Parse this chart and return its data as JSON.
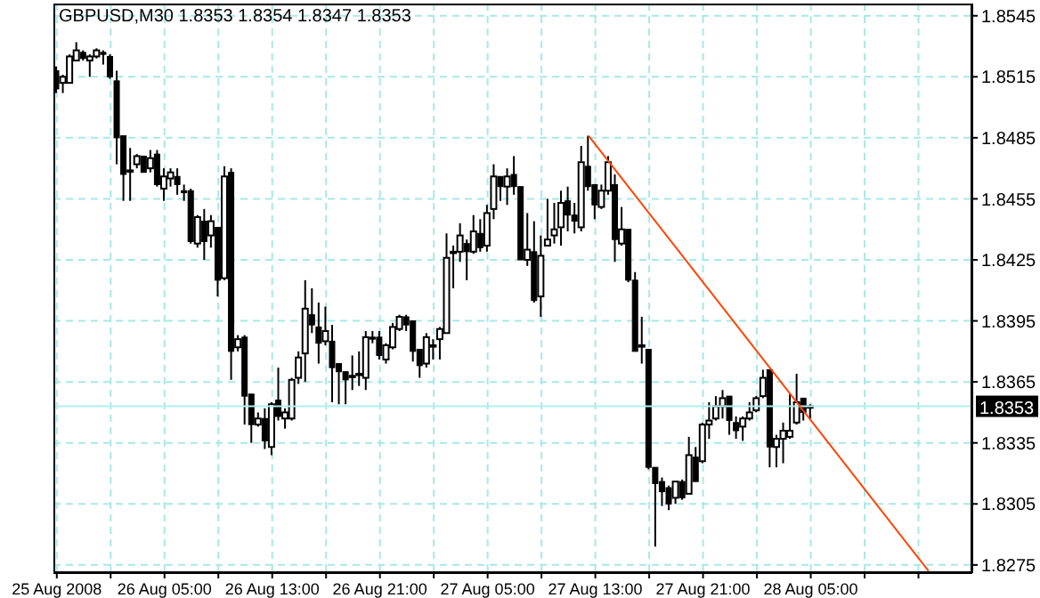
{
  "chart_data": {
    "type": "candlestick",
    "title": "GBPUSD,M30 1.8353 1.8354 1.8347 1.8353",
    "color": "#000000",
    "x": [
      "2008-08-25T21:00",
      "2008-08-25T21:30",
      "2008-08-25T22:00",
      "2008-08-25T22:30",
      "2008-08-25T23:00",
      "2008-08-25T23:30",
      "2008-08-26T00:00",
      "2008-08-26T00:30",
      "2008-08-26T01:00",
      "2008-08-26T01:30",
      "2008-08-26T02:00",
      "2008-08-26T02:30",
      "2008-08-26T03:00",
      "2008-08-26T03:30",
      "2008-08-26T04:00",
      "2008-08-26T04:30",
      "2008-08-26T05:00",
      "2008-08-26T05:30",
      "2008-08-26T06:00",
      "2008-08-26T06:30",
      "2008-08-26T07:00",
      "2008-08-26T07:30",
      "2008-08-26T08:00",
      "2008-08-26T08:30",
      "2008-08-26T09:00",
      "2008-08-26T09:30",
      "2008-08-26T10:00",
      "2008-08-26T10:30",
      "2008-08-26T11:00",
      "2008-08-26T11:30",
      "2008-08-26T12:00",
      "2008-08-26T12:30",
      "2008-08-26T13:00",
      "2008-08-26T13:30",
      "2008-08-26T14:00",
      "2008-08-26T14:30",
      "2008-08-26T15:00",
      "2008-08-26T15:30",
      "2008-08-26T16:00",
      "2008-08-26T16:30",
      "2008-08-26T17:00",
      "2008-08-26T17:30",
      "2008-08-26T18:00",
      "2008-08-26T18:30",
      "2008-08-26T19:00",
      "2008-08-26T19:30",
      "2008-08-26T20:00",
      "2008-08-26T20:30",
      "2008-08-26T21:00",
      "2008-08-26T21:30",
      "2008-08-26T22:00",
      "2008-08-26T22:30",
      "2008-08-26T23:00",
      "2008-08-26T23:30",
      "2008-08-27T00:00",
      "2008-08-27T00:30",
      "2008-08-27T01:00",
      "2008-08-27T01:30",
      "2008-08-27T02:00",
      "2008-08-27T02:30",
      "2008-08-27T03:00",
      "2008-08-27T03:30",
      "2008-08-27T04:00",
      "2008-08-27T04:30",
      "2008-08-27T05:00",
      "2008-08-27T05:30",
      "2008-08-27T06:00",
      "2008-08-27T06:30",
      "2008-08-27T07:00",
      "2008-08-27T07:30",
      "2008-08-27T08:00",
      "2008-08-27T08:30",
      "2008-08-27T09:00",
      "2008-08-27T09:30",
      "2008-08-27T10:00",
      "2008-08-27T10:30",
      "2008-08-27T11:00",
      "2008-08-27T11:30",
      "2008-08-27T12:00",
      "2008-08-27T12:30",
      "2008-08-27T13:00",
      "2008-08-27T13:30",
      "2008-08-27T14:00",
      "2008-08-27T14:30",
      "2008-08-27T15:00",
      "2008-08-27T15:30",
      "2008-08-27T16:00",
      "2008-08-27T16:30",
      "2008-08-27T17:00",
      "2008-08-27T17:30",
      "2008-08-27T18:00",
      "2008-08-27T18:30",
      "2008-08-27T19:00",
      "2008-08-27T19:30",
      "2008-08-27T20:00",
      "2008-08-27T20:30",
      "2008-08-27T21:00",
      "2008-08-27T21:30",
      "2008-08-27T22:00",
      "2008-08-27T22:30",
      "2008-08-27T23:00",
      "2008-08-27T23:30",
      "2008-08-28T00:00",
      "2008-08-28T00:30",
      "2008-08-28T01:00",
      "2008-08-28T01:30",
      "2008-08-28T02:00",
      "2008-08-28T02:30",
      "2008-08-28T03:00",
      "2008-08-28T03:30",
      "2008-08-28T04:00",
      "2008-08-28T04:30",
      "2008-08-28T05:00"
    ],
    "ohlc": [
      [
        1.8518,
        1.852,
        1.8507,
        1.8509
      ],
      [
        1.8512,
        1.8516,
        1.8507,
        1.8515
      ],
      [
        1.8512,
        1.8526,
        1.8512,
        1.8525
      ],
      [
        1.8523,
        1.8532,
        1.8523,
        1.8528
      ],
      [
        1.8527,
        1.8528,
        1.8523,
        1.8524
      ],
      [
        1.8523,
        1.8526,
        1.8515,
        1.8525
      ],
      [
        1.8525,
        1.8529,
        1.8524,
        1.8528
      ],
      [
        1.8527,
        1.8528,
        1.8521,
        1.8526
      ],
      [
        1.8525,
        1.8526,
        1.8514,
        1.8515
      ],
      [
        1.8513,
        1.8518,
        1.8472,
        1.8485
      ],
      [
        1.8486,
        1.8486,
        1.8454,
        1.8467
      ],
      [
        1.8469,
        1.848,
        1.8454,
        1.8469
      ],
      [
        1.8472,
        1.8477,
        1.847,
        1.8476
      ],
      [
        1.8476,
        1.8476,
        1.8468,
        1.8468
      ],
      [
        1.847,
        1.8479,
        1.8468,
        1.8475
      ],
      [
        1.8477,
        1.8479,
        1.8461,
        1.8462
      ],
      [
        1.846,
        1.847,
        1.8454,
        1.8466
      ],
      [
        1.8465,
        1.847,
        1.8461,
        1.8468
      ],
      [
        1.8466,
        1.847,
        1.8457,
        1.8462
      ],
      [
        1.8459,
        1.8462,
        1.8454,
        1.8458
      ],
      [
        1.8459,
        1.846,
        1.8433,
        1.8434
      ],
      [
        1.8433,
        1.8447,
        1.8431,
        1.8446
      ],
      [
        1.8444,
        1.845,
        1.8425,
        1.8434
      ],
      [
        1.8437,
        1.8447,
        1.8431,
        1.8444
      ],
      [
        1.8441,
        1.8441,
        1.8407,
        1.8415
      ],
      [
        1.8416,
        1.8471,
        1.8415,
        1.8466
      ],
      [
        1.8468,
        1.847,
        1.8366,
        1.838
      ],
      [
        1.8382,
        1.8388,
        1.838,
        1.8386
      ],
      [
        1.8387,
        1.8388,
        1.8344,
        1.8358
      ],
      [
        1.8359,
        1.8359,
        1.8335,
        1.8344
      ],
      [
        1.8344,
        1.835,
        1.8343,
        1.8347
      ],
      [
        1.8347,
        1.8352,
        1.8332,
        1.8336
      ],
      [
        1.8333,
        1.8355,
        1.8329,
        1.8354
      ],
      [
        1.8356,
        1.8372,
        1.8346,
        1.8348
      ],
      [
        1.8347,
        1.8352,
        1.8342,
        1.835
      ],
      [
        1.8347,
        1.8367,
        1.8346,
        1.8366
      ],
      [
        1.8367,
        1.838,
        1.8364,
        1.8377
      ],
      [
        1.8379,
        1.8415,
        1.8365,
        1.8401
      ],
      [
        1.8398,
        1.8411,
        1.8389,
        1.8393
      ],
      [
        1.8392,
        1.8404,
        1.8374,
        1.8384
      ],
      [
        1.8385,
        1.8402,
        1.8383,
        1.839
      ],
      [
        1.8385,
        1.8393,
        1.8355,
        1.8372
      ],
      [
        1.8374,
        1.8374,
        1.8354,
        1.837
      ],
      [
        1.837,
        1.837,
        1.8354,
        1.8366
      ],
      [
        1.8368,
        1.8378,
        1.8361,
        1.8368
      ],
      [
        1.8369,
        1.838,
        1.8363,
        1.8369
      ],
      [
        1.8367,
        1.839,
        1.8361,
        1.8387
      ],
      [
        1.8387,
        1.839,
        1.8384,
        1.8386
      ],
      [
        1.8387,
        1.839,
        1.8376,
        1.8378
      ],
      [
        1.8376,
        1.8384,
        1.8374,
        1.8383
      ],
      [
        1.8382,
        1.8394,
        1.8381,
        1.8392
      ],
      [
        1.8391,
        1.8398,
        1.839,
        1.8397
      ],
      [
        1.8397,
        1.8398,
        1.839,
        1.8393
      ],
      [
        1.8395,
        1.8395,
        1.8375,
        1.838
      ],
      [
        1.8381,
        1.8381,
        1.8367,
        1.8373
      ],
      [
        1.8374,
        1.8389,
        1.8372,
        1.8387
      ],
      [
        1.8383,
        1.8386,
        1.8376,
        1.8383
      ],
      [
        1.8386,
        1.8392,
        1.8376,
        1.8391
      ],
      [
        1.8389,
        1.8438,
        1.8389,
        1.8426
      ],
      [
        1.8429,
        1.8432,
        1.8411,
        1.8429
      ],
      [
        1.8429,
        1.8443,
        1.8424,
        1.8437
      ],
      [
        1.8433,
        1.8435,
        1.8415,
        1.8429
      ],
      [
        1.8429,
        1.8447,
        1.8428,
        1.8439
      ],
      [
        1.8438,
        1.8445,
        1.8429,
        1.8431
      ],
      [
        1.8432,
        1.8452,
        1.8429,
        1.8448
      ],
      [
        1.845,
        1.8472,
        1.8445,
        1.8466
      ],
      [
        1.8466,
        1.8466,
        1.8454,
        1.8461
      ],
      [
        1.8461,
        1.847,
        1.8452,
        1.8466
      ],
      [
        1.8467,
        1.8476,
        1.8457,
        1.8461
      ],
      [
        1.8461,
        1.8461,
        1.8425,
        1.8425
      ],
      [
        1.8425,
        1.8448,
        1.8422,
        1.843
      ],
      [
        1.8429,
        1.8444,
        1.8404,
        1.8405
      ],
      [
        1.8407,
        1.8437,
        1.8397,
        1.8427
      ],
      [
        1.8432,
        1.8455,
        1.8432,
        1.8435
      ],
      [
        1.8437,
        1.8453,
        1.8433,
        1.844
      ],
      [
        1.8441,
        1.8459,
        1.8432,
        1.8453
      ],
      [
        1.8454,
        1.8461,
        1.8439,
        1.8447
      ],
      [
        1.8447,
        1.8453,
        1.8438,
        1.8444
      ],
      [
        1.8441,
        1.8481,
        1.8439,
        1.8473
      ],
      [
        1.8471,
        1.8486,
        1.8459,
        1.8461
      ],
      [
        1.8462,
        1.8462,
        1.8445,
        1.8452
      ],
      [
        1.8451,
        1.8462,
        1.845,
        1.8459
      ],
      [
        1.8459,
        1.8476,
        1.8457,
        1.8473
      ],
      [
        1.8462,
        1.8467,
        1.8424,
        1.8435
      ],
      [
        1.8433,
        1.8451,
        1.8432,
        1.844
      ],
      [
        1.844,
        1.844,
        1.8414,
        1.8415
      ],
      [
        1.8415,
        1.8419,
        1.838,
        1.838
      ],
      [
        1.8383,
        1.8397,
        1.8374,
        1.8383
      ],
      [
        1.8381,
        1.8381,
        1.8322,
        1.8323
      ],
      [
        1.8323,
        1.8323,
        1.8284,
        1.8315
      ],
      [
        1.8316,
        1.8318,
        1.8304,
        1.8311
      ],
      [
        1.8313,
        1.8314,
        1.8302,
        1.8305
      ],
      [
        1.8308,
        1.8316,
        1.8305,
        1.8316
      ],
      [
        1.8316,
        1.8317,
        1.8307,
        1.8308
      ],
      [
        1.831,
        1.8338,
        1.831,
        1.8329
      ],
      [
        1.8328,
        1.8333,
        1.8316,
        1.8316
      ],
      [
        1.8326,
        1.8345,
        1.8325,
        1.8344
      ],
      [
        1.8344,
        1.8355,
        1.8337,
        1.8346
      ],
      [
        1.8347,
        1.8358,
        1.8346,
        1.8353
      ],
      [
        1.8353,
        1.8361,
        1.8347,
        1.8357
      ],
      [
        1.8358,
        1.8358,
        1.8339,
        1.8346
      ],
      [
        1.8345,
        1.8348,
        1.8337,
        1.8341
      ],
      [
        1.8343,
        1.8348,
        1.8336,
        1.8347
      ],
      [
        1.8347,
        1.8355,
        1.8346,
        1.835
      ],
      [
        1.8351,
        1.8358,
        1.835,
        1.8357
      ],
      [
        1.8358,
        1.8371,
        1.8357,
        1.8367
      ],
      [
        1.8371,
        1.8371,
        1.8323,
        1.8333
      ],
      [
        1.8333,
        1.8339,
        1.8323,
        1.8337
      ],
      [
        1.8337,
        1.8345,
        1.8325,
        1.8341
      ],
      [
        1.8338,
        1.8359,
        1.8337,
        1.8341
      ],
      [
        1.8345,
        1.8369,
        1.8344,
        1.8355
      ],
      [
        1.8357,
        1.8357,
        1.8346,
        1.835
      ],
      [
        1.8353,
        1.8354,
        1.8347,
        1.8353
      ]
    ],
    "series": [
      {
        "type": "line",
        "color": "#ff4400",
        "x": [
          "2008-08-27T12:30",
          "2008-08-28T13:45"
        ],
        "values": [
          1.8486,
          1.8272
        ]
      }
    ],
    "xlim": [
      "2008-08-25T20:45",
      "2008-08-28T17:00"
    ],
    "xticks": [
      {
        "value": "2008-08-25T21:00",
        "label": "25 Aug 2008"
      },
      {
        "value": "2008-08-26T01:00",
        "label": null
      },
      {
        "value": "2008-08-26T05:00",
        "label": "26 Aug 05:00"
      },
      {
        "value": "2008-08-26T09:00",
        "label": null
      },
      {
        "value": "2008-08-26T13:00",
        "label": "26 Aug 13:00"
      },
      {
        "value": "2008-08-26T17:00",
        "label": null
      },
      {
        "value": "2008-08-26T21:00",
        "label": "26 Aug 21:00"
      },
      {
        "value": "2008-08-27T01:00",
        "label": null
      },
      {
        "value": "2008-08-27T05:00",
        "label": "27 Aug 05:00"
      },
      {
        "value": "2008-08-27T09:00",
        "label": null
      },
      {
        "value": "2008-08-27T13:00",
        "label": "27 Aug 13:00"
      },
      {
        "value": "2008-08-27T17:00",
        "label": null
      },
      {
        "value": "2008-08-27T21:00",
        "label": "27 Aug 21:00"
      },
      {
        "value": "2008-08-28T01:00",
        "label": null
      },
      {
        "value": "2008-08-28T05:00",
        "label": "28 Aug 05:00"
      },
      {
        "value": "2008-08-28T09:00",
        "label": null
      },
      {
        "value": "2008-08-28T13:00",
        "label": null
      }
    ],
    "ylim": [
      1.8271,
      1.8551
    ],
    "yticks": [
      1.8275,
      1.8305,
      1.8335,
      1.8365,
      1.8395,
      1.8425,
      1.8455,
      1.8485,
      1.8515,
      1.8545
    ],
    "grid": true,
    "ref_lines": [
      {
        "axis": "y",
        "value": 1.8353,
        "label": "1.8353",
        "color": "#b0f0f0"
      }
    ]
  }
}
